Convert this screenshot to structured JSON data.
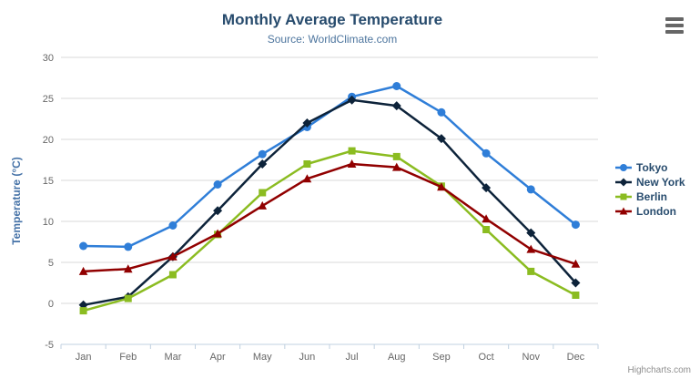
{
  "chart": {
    "title": "Monthly Average Temperature",
    "subtitle": "Source: WorldClimate.com",
    "credit": "Highcharts.com",
    "export_icon": "hamburger-icon"
  },
  "chart_data": {
    "type": "line",
    "title": "Monthly Average Temperature",
    "subtitle": "Source: WorldClimate.com",
    "categories": [
      "Jan",
      "Feb",
      "Mar",
      "Apr",
      "May",
      "Jun",
      "Jul",
      "Aug",
      "Sep",
      "Oct",
      "Nov",
      "Dec"
    ],
    "series": [
      {
        "name": "Tokyo",
        "marker": "circle",
        "color": "#2f7ed8",
        "values": [
          7.0,
          6.9,
          9.5,
          14.5,
          18.2,
          21.5,
          25.2,
          26.5,
          23.3,
          18.3,
          13.9,
          9.6
        ]
      },
      {
        "name": "New York",
        "marker": "diamond",
        "color": "#0d233a",
        "values": [
          -0.2,
          0.8,
          5.7,
          11.3,
          17.0,
          22.0,
          24.8,
          24.1,
          20.1,
          14.1,
          8.6,
          2.5
        ]
      },
      {
        "name": "Berlin",
        "marker": "square",
        "color": "#8bbc21",
        "values": [
          -0.9,
          0.6,
          3.5,
          8.4,
          13.5,
          17.0,
          18.6,
          17.9,
          14.3,
          9.0,
          3.9,
          1.0
        ]
      },
      {
        "name": "London",
        "marker": "triangle",
        "color": "#910000",
        "values": [
          3.9,
          4.2,
          5.7,
          8.5,
          11.9,
          15.2,
          17.0,
          16.6,
          14.2,
          10.3,
          6.6,
          4.8
        ]
      }
    ],
    "xlabel": "",
    "ylabel": "Temperature (°C)",
    "ylim": [
      -5,
      30
    ],
    "ytick_interval": 5,
    "grid": true,
    "legend_position": "right"
  },
  "theme": {
    "title_color": "#274b6d",
    "subtitle_color": "#4d759e",
    "axis_label_color": "#666666",
    "yaxis_title_color": "#4572a7",
    "axis_line_color": "#c0d0e0",
    "grid_line_color": "#d8d8d8",
    "legend_text_color": "#274b6d",
    "credit_color": "#909090",
    "background": "#ffffff"
  }
}
